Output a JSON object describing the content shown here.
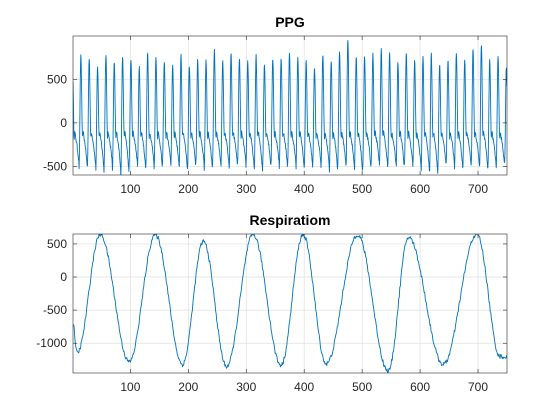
{
  "chart_data": [
    {
      "type": "line",
      "title": "PPG",
      "xlabel": "",
      "ylabel": "",
      "xlim": [
        1,
        750
      ],
      "ylim": [
        -600,
        1000
      ],
      "xticks": [
        100,
        200,
        300,
        400,
        500,
        600,
        700
      ],
      "yticks": [
        -500,
        0,
        500
      ],
      "grid": true,
      "series": [
        {
          "color": "#0072bd",
          "period_samples": 14.4,
          "peak_values": [
            650,
            780,
            750,
            640,
            780,
            690,
            760,
            720,
            640,
            800,
            760,
            700,
            650,
            790,
            660,
            720,
            730,
            830,
            720,
            800,
            750,
            720,
            770,
            690,
            750,
            760,
            800,
            750,
            710,
            640,
            790,
            720,
            830,
            960,
            770,
            760,
            790,
            840,
            800,
            700,
            800,
            720,
            760,
            790,
            680,
            730,
            820,
            730,
            850,
            900,
            720,
            760
          ],
          "trough_values": [
            -470,
            -520,
            -500,
            -560,
            -480,
            -540,
            -600,
            -470,
            -540,
            -480,
            -530,
            -470,
            -500,
            -540,
            -510,
            -470,
            -550,
            -480,
            -520,
            -500,
            -470,
            -530,
            -560,
            -500,
            -480,
            -520,
            -470,
            -540,
            -500,
            -480,
            -520,
            -560,
            -490,
            -500,
            -600,
            -530,
            -470,
            -510,
            -490,
            -540,
            -480,
            -520,
            -560,
            -600,
            -500,
            -470,
            -520,
            -500,
            -490,
            -540,
            -510,
            -500
          ]
        }
      ]
    },
    {
      "type": "line",
      "title": "Respiratiom",
      "xlabel": "",
      "ylabel": "",
      "xlim": [
        1,
        750
      ],
      "ylim": [
        -1450,
        650
      ],
      "xticks": [
        100,
        200,
        300,
        400,
        500,
        600,
        700
      ],
      "yticks": [
        -1000,
        -500,
        0,
        500
      ],
      "grid": true,
      "series": [
        {
          "color": "#0072bd",
          "start_value": -700,
          "peaks": [
            [
              48,
              640
            ],
            [
              143,
              640
            ],
            [
              226,
              540
            ],
            [
              312,
              640
            ],
            [
              398,
              640
            ],
            [
              492,
              640
            ],
            [
              580,
              600
            ],
            [
              698,
              650
            ]
          ],
          "troughs": [
            [
              8,
              -1150
            ],
            [
              98,
              -1280
            ],
            [
              190,
              -1320
            ],
            [
              266,
              -1350
            ],
            [
              360,
              -1330
            ],
            [
              438,
              -1310
            ],
            [
              545,
              -1420
            ],
            [
              640,
              -1320
            ],
            [
              738,
              -1200
            ]
          ],
          "end_value": -1210
        }
      ]
    }
  ]
}
